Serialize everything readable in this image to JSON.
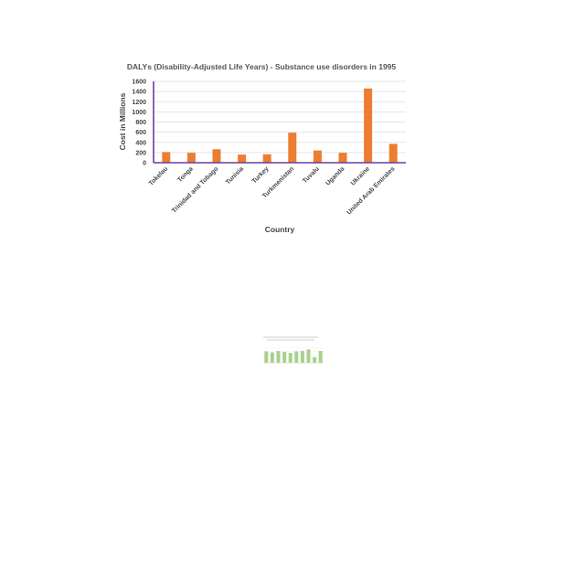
{
  "chart_data": [
    {
      "type": "bar",
      "title": "DALYs (Disability-Adjusted Life Years) - Substance use disorders in 1995",
      "xlabel": "Country",
      "ylabel": "Cost in Millions",
      "categories": [
        "Tokelau",
        "Tonga",
        "Trinidad and Tobago",
        "Tunisia",
        "Turkey",
        "Turkmenistan",
        "Tuvalu",
        "Uganda",
        "Ukraine",
        "United Arab Emirates"
      ],
      "values": [
        210,
        195,
        265,
        160,
        165,
        590,
        240,
        195,
        1460,
        370
      ],
      "yticks": [
        0,
        200,
        400,
        600,
        800,
        1000,
        1200,
        1400,
        1600
      ],
      "ylim": [
        0,
        1600
      ],
      "grid": true,
      "bar_color": "#ed7d31"
    },
    {
      "type": "bar",
      "categories": [
        "",
        "",
        "",
        "",
        "",
        "",
        "",
        "",
        "",
        ""
      ],
      "values": [
        60,
        55,
        62,
        58,
        52,
        60,
        62,
        70,
        30,
        62
      ],
      "ylim": [
        0,
        100
      ],
      "grid": true,
      "bar_color": "#a9d18e"
    }
  ]
}
